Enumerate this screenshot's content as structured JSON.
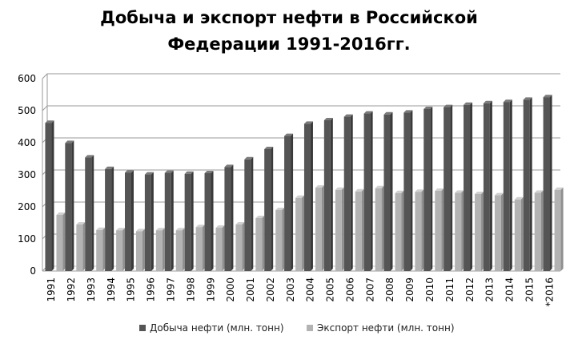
{
  "chart_data": {
    "type": "bar",
    "title_lines": [
      "Добыча и экспорт нефти в Российской",
      "Федерации 1991-2016гг."
    ],
    "categories": [
      "1991",
      "1992",
      "1993",
      "1994",
      "1995",
      "1996",
      "1997",
      "1998",
      "1999",
      "2000",
      "2001",
      "2002",
      "2003",
      "2004",
      "2005",
      "2006",
      "2007",
      "2008",
      "2009",
      "2010",
      "2011",
      "2012",
      "2013",
      "2014",
      "2015",
      "*2016"
    ],
    "series": [
      {
        "name": "Добыча нефти (млн. тонн)",
        "color": "#555555",
        "values": [
          462,
          399,
          354,
          318,
          307,
          301,
          306,
          303,
          305,
          324,
          348,
          380,
          421,
          459,
          470,
          481,
          491,
          488,
          494,
          505,
          511,
          518,
          523,
          527,
          534,
          542
        ]
      },
      {
        "name": "Экспорт нефти (млн. тонн)",
        "color": "#b3b3b3",
        "values": [
          175,
          145,
          128,
          127,
          124,
          127,
          127,
          137,
          135,
          145,
          165,
          190,
          228,
          260,
          253,
          248,
          258,
          243,
          247,
          250,
          244,
          240,
          236,
          223,
          244,
          253
        ]
      }
    ],
    "ylim": [
      0,
      600
    ],
    "yticks": [
      0,
      100,
      200,
      300,
      400,
      500,
      600
    ],
    "grid": true,
    "legend_position": "bottom"
  }
}
